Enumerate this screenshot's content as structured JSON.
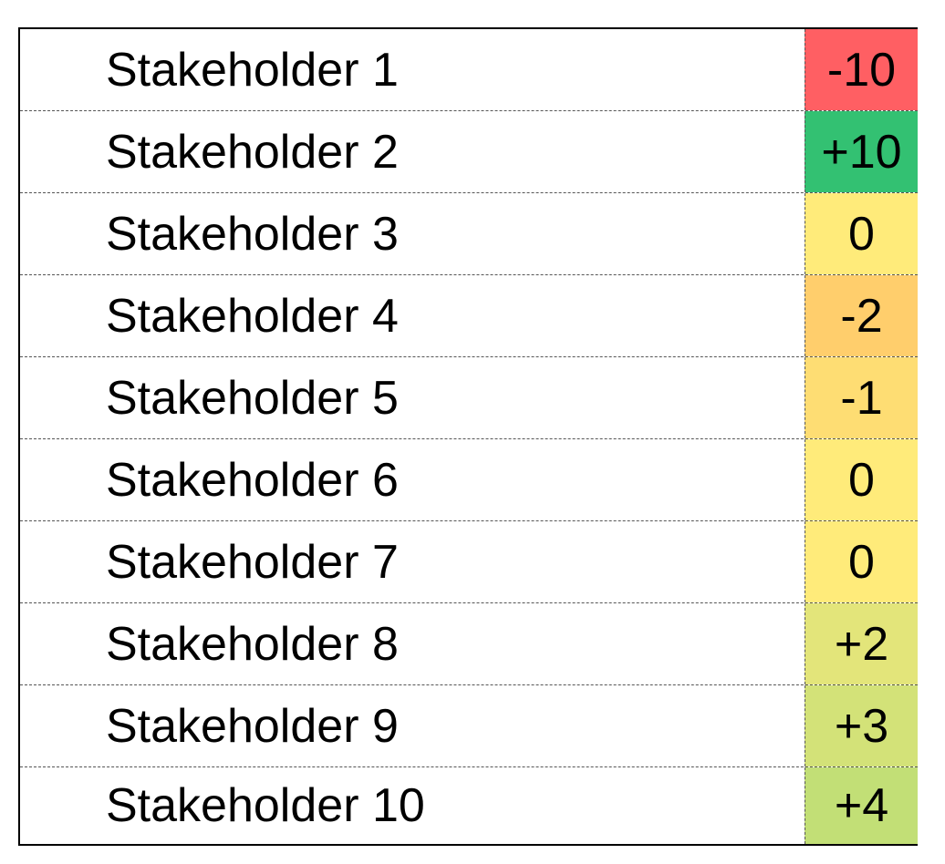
{
  "rows": [
    {
      "name": "Stakeholder 1",
      "score": "-10",
      "color": "#ff5f63"
    },
    {
      "name": "Stakeholder 2",
      "score": "+10",
      "color": "#33c172"
    },
    {
      "name": "Stakeholder 3",
      "score": "0",
      "color": "#ffeb7a"
    },
    {
      "name": "Stakeholder 4",
      "score": "-2",
      "color": "#ffce6c"
    },
    {
      "name": "Stakeholder 5",
      "score": "-1",
      "color": "#fedd73"
    },
    {
      "name": "Stakeholder 6",
      "score": "0",
      "color": "#ffeb7a"
    },
    {
      "name": "Stakeholder 7",
      "score": "0",
      "color": "#ffeb7a"
    },
    {
      "name": "Stakeholder 8",
      "score": "+2",
      "color": "#e3e57a"
    },
    {
      "name": "Stakeholder 9",
      "score": "+3",
      "color": "#d3e278"
    },
    {
      "name": "Stakeholder 10",
      "score": "+4",
      "color": "#c2df76"
    }
  ]
}
